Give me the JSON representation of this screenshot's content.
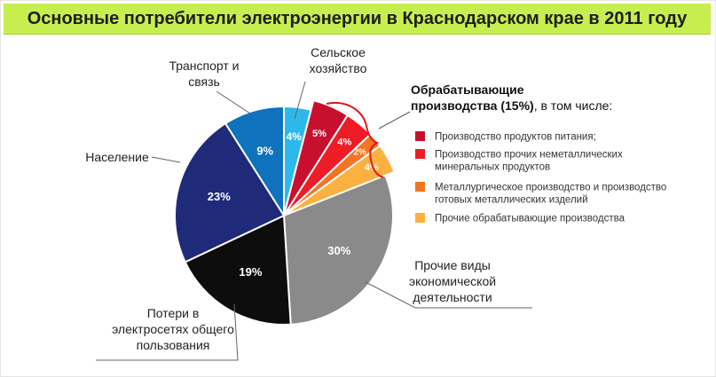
{
  "title": "Основные потребители электроэнергии в Краснодарском крае в 2011 году",
  "chart_data": {
    "type": "pie",
    "unit": "%",
    "slices": [
      {
        "id": "agriculture",
        "label_lines": [
          "Сельское",
          "хозяйство"
        ],
        "value": 4,
        "value_text": "4%",
        "color": "#2db8ec"
      },
      {
        "id": "food",
        "label_lines": [],
        "value": 5,
        "value_text": "5%",
        "color": "#c8102e"
      },
      {
        "id": "nonmetal",
        "label_lines": [],
        "value": 4,
        "value_text": "4%",
        "color": "#ee1c25"
      },
      {
        "id": "metallurgy",
        "label_lines": [],
        "value": 2,
        "value_text": "2%",
        "color": "#f47421"
      },
      {
        "id": "other-manufacturing",
        "label_lines": [],
        "value": 4,
        "value_text": "4%",
        "color": "#fbb040"
      },
      {
        "id": "other-economic",
        "label_lines": [
          "Прочие виды",
          "экономической",
          "деятельности"
        ],
        "value": 30,
        "value_text": "30%",
        "color": "#8a8a8a"
      },
      {
        "id": "grid-losses",
        "label_lines": [
          "Потери в",
          "электросетях общего",
          "пользования"
        ],
        "value": 19,
        "value_text": "19%",
        "color": "#0d0d0d"
      },
      {
        "id": "population",
        "label_lines": [
          "Население"
        ],
        "value": 23,
        "value_text": "23%",
        "color": "#1f2a78"
      },
      {
        "id": "transport",
        "label_lines": [
          "Транспорт и",
          "связь"
        ],
        "value": 9,
        "value_text": "9%",
        "color": "#0e72bd"
      }
    ],
    "manufacturing_group": {
      "heading_lines": [
        "Обрабатывающие",
        "производства (15%)"
      ],
      "heading_suffix": ", в том числе:",
      "bracket_color": "#e3141b"
    },
    "legend": [
      {
        "slice": "food",
        "color": "#c8102e",
        "lines": [
          "Производство продуктов питания;"
        ]
      },
      {
        "slice": "nonmetal",
        "color": "#ee1c25",
        "lines": [
          "Производство прочих неметаллических",
          "минеральных продуктов"
        ]
      },
      {
        "slice": "metallurgy",
        "color": "#f47421",
        "lines": [
          "Металлургическое производство и производство",
          "готовых металлических изделий"
        ]
      },
      {
        "slice": "other-manufacturing",
        "color": "#fbb040",
        "lines": [
          "Прочие обрабатывающие производства"
        ]
      }
    ]
  }
}
